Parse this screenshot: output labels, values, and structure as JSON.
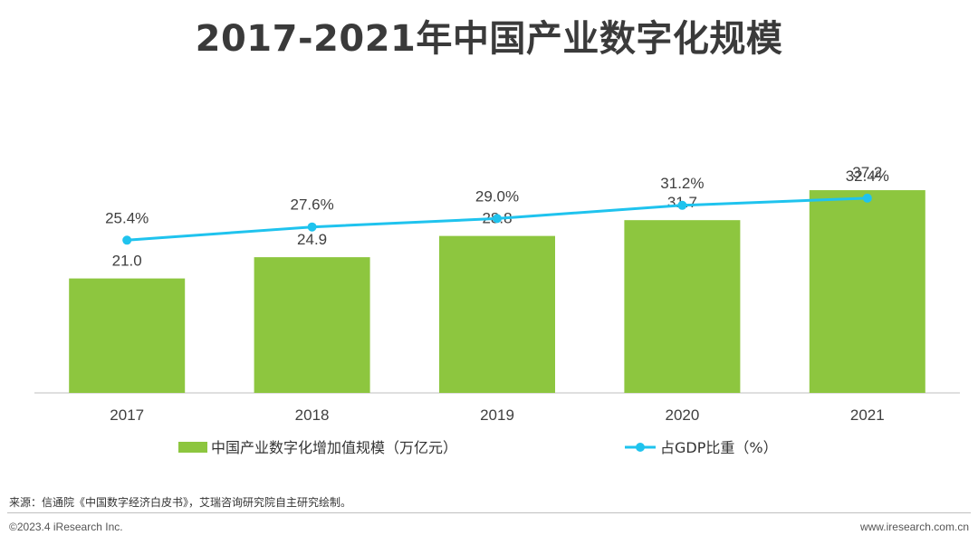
{
  "chart_data": {
    "type": "bar",
    "title": "2017-2021年中国产业数字化规模",
    "categories": [
      "2017",
      "2018",
      "2019",
      "2020",
      "2021"
    ],
    "series": [
      {
        "name": "中国产业数字化增加值规模（万亿元）",
        "type": "bar",
        "color": "#8dc63f",
        "values": [
          21.0,
          24.9,
          28.8,
          31.7,
          37.2
        ],
        "labels": [
          "21.0",
          "24.9",
          "28.8",
          "31.7",
          "37.2"
        ]
      },
      {
        "name": "占GDP比重（%）",
        "type": "line",
        "color": "#1fc3ee",
        "values": [
          25.4,
          27.6,
          29.0,
          31.2,
          32.4
        ],
        "labels": [
          "25.4%",
          "27.6%",
          "29.0%",
          "31.2%",
          "32.4%"
        ]
      }
    ],
    "ylim_bar": [
      0,
      50
    ],
    "ylim_line": [
      0,
      53
    ],
    "grid": false,
    "legend": "bottom"
  },
  "footer": {
    "source": "来源：信通院《中国数字经济白皮书》，艾瑞咨询研究院自主研究绘制。",
    "copyright": "©2023.4 iResearch Inc.",
    "website": "www.iresearch.com.cn"
  }
}
